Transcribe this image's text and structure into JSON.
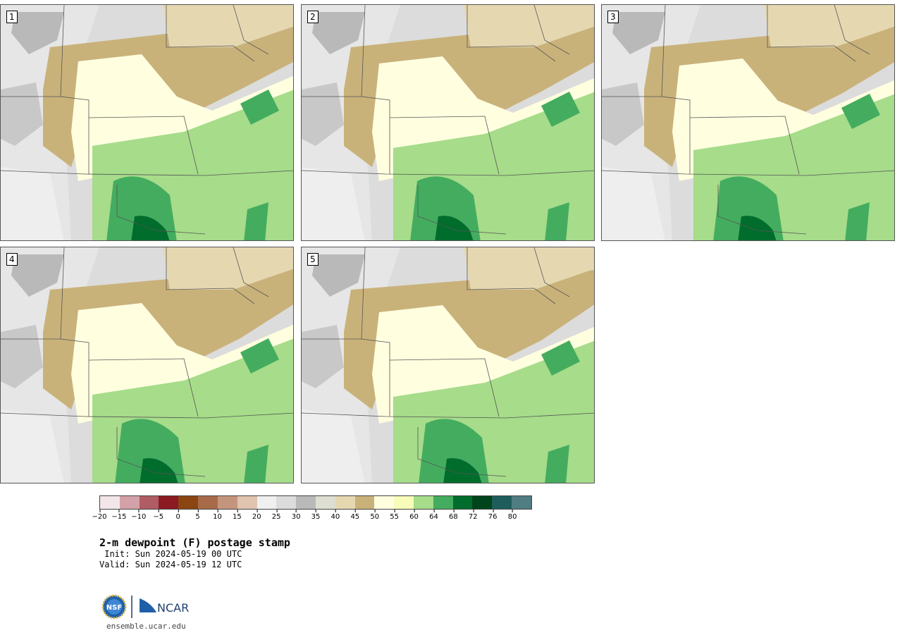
{
  "panels": [
    {
      "label": "1"
    },
    {
      "label": "2"
    },
    {
      "label": "3"
    },
    {
      "label": "4"
    },
    {
      "label": "5"
    }
  ],
  "legend": {
    "colors": [
      "#f3e6e8",
      "#d4a1a8",
      "#b05c64",
      "#8c1a22",
      "#8b4513",
      "#a86b4a",
      "#c4957d",
      "#e0c4b0",
      "#f0f0f0",
      "#dcdcdc",
      "#b9b9b9",
      "#dedfd2",
      "#e5d8b1",
      "#c9b27a",
      "#ffffe0",
      "#f7fcb9",
      "#a6dc8a",
      "#44ac5f",
      "#006d2c",
      "#00441b",
      "#1f5d5d",
      "#507d82"
    ],
    "ticks": [
      "−20",
      "−15",
      "−10",
      "−5",
      "0",
      "5",
      "10",
      "15",
      "20",
      "25",
      "30",
      "35",
      "40",
      "45",
      "50",
      "55",
      "60",
      "64",
      "68",
      "72",
      "76",
      "80"
    ]
  },
  "title": "2-m dewpoint (F) postage stamp",
  "init": " Init: Sun 2024-05-19 00 UTC",
  "valid": "Valid: Sun 2024-05-19 12 UTC",
  "org": {
    "logo_text": "NCAR",
    "seal_text": "NSF",
    "website": "ensemble.ucar.edu"
  }
}
